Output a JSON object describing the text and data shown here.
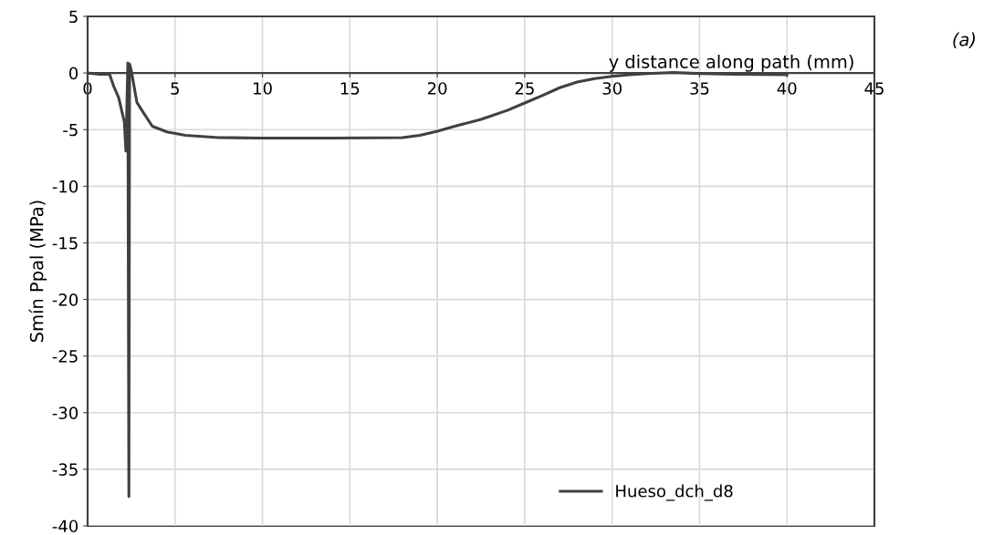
{
  "chart_data": {
    "type": "line",
    "xlabel": "y distance along path (mm)",
    "ylabel": "Smín Ppal (MPa)",
    "annotations": [
      "(a)"
    ],
    "xlim": [
      0,
      45
    ],
    "xticks": [
      0,
      5,
      10,
      15,
      20,
      25,
      30,
      35,
      40,
      45
    ],
    "ylim": [
      -40,
      5
    ],
    "yticks": [
      -40,
      -35,
      -30,
      -25,
      -20,
      -15,
      -10,
      -5,
      0,
      5
    ],
    "grid": true,
    "legend": "bottom right",
    "series": [
      {
        "name": "Hueso_dch_d8",
        "color": "#404040",
        "x": [
          0,
          0.6,
          1.25,
          1.5,
          1.78,
          1.93,
          2.1,
          2.14,
          2.19,
          2.3,
          2.36,
          2.4,
          2.5,
          2.82,
          3.19,
          3.7,
          4.54,
          5.6,
          7.5,
          10,
          14,
          18,
          19,
          20,
          21,
          22.5,
          24,
          25,
          26,
          27,
          28,
          29,
          30,
          31,
          32,
          33.5,
          35,
          37,
          40
        ],
        "values": [
          0,
          -0.1,
          -0.1,
          -1.2,
          -2.2,
          -3.2,
          -4.3,
          -5.5,
          -6.9,
          0.9,
          -37.4,
          0.8,
          0.2,
          -2.6,
          -3.5,
          -4.7,
          -5.2,
          -5.5,
          -5.7,
          -5.75,
          -5.75,
          -5.7,
          -5.5,
          -5.15,
          -4.7,
          -4.1,
          -3.3,
          -2.65,
          -2.0,
          -1.3,
          -0.8,
          -0.5,
          -0.3,
          -0.15,
          -0.05,
          0.05,
          -0.05,
          -0.1,
          -0.15
        ]
      }
    ]
  }
}
